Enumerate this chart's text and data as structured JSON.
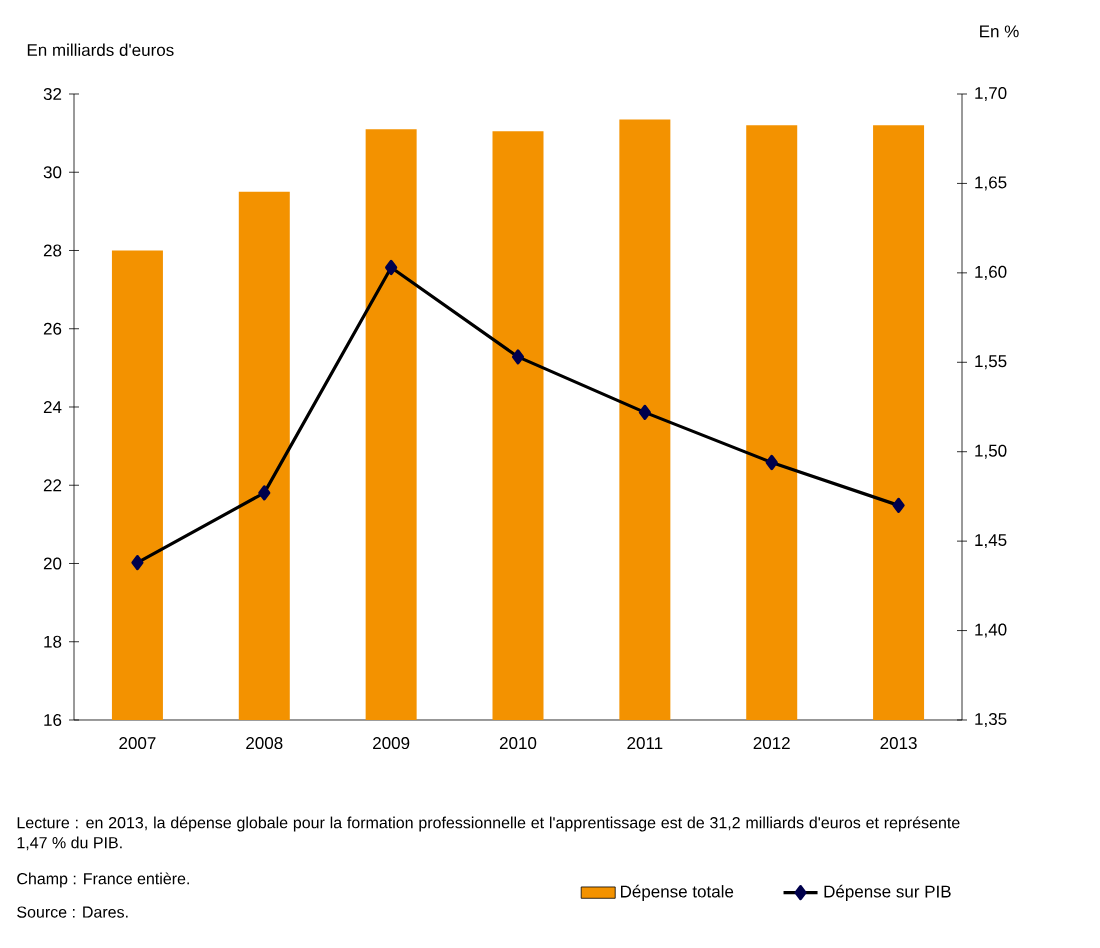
{
  "chart_data": {
    "type": "bar",
    "ylabel": "En milliards d'euros",
    "y2label": "En %",
    "categories": [
      "2007",
      "2008",
      "2009",
      "2010",
      "2011",
      "2012",
      "2013"
    ],
    "series": [
      {
        "name": "Dépense totale",
        "color": "#f39200",
        "values": [
          28.0,
          29.5,
          31.1,
          31.05,
          31.35,
          31.2,
          31.2
        ]
      },
      {
        "name": "Dépense sur PIB",
        "type": "line",
        "axis": "y2",
        "color": "#000000",
        "marker": "diamond",
        "values": [
          1.438,
          1.477,
          1.603,
          1.553,
          1.522,
          1.494,
          1.47
        ]
      }
    ],
    "ylim": [
      16,
      32
    ],
    "yticks": [
      16,
      18,
      20,
      22,
      24,
      26,
      28,
      30,
      32
    ],
    "y2lim": [
      1.35,
      1.7
    ],
    "y2ticks": [
      {
        "value": 1.35,
        "label": "1,35"
      },
      {
        "value": 1.4,
        "label": "1,40"
      },
      {
        "value": 1.45,
        "label": "1,45"
      },
      {
        "value": 1.5,
        "label": "1,50"
      },
      {
        "value": 1.55,
        "label": "1,55"
      },
      {
        "value": 1.6,
        "label": "1,60"
      },
      {
        "value": 1.65,
        "label": "1,65"
      },
      {
        "value": 1.7,
        "label": "1,70"
      }
    ],
    "grid": false,
    "legend": "bottom right",
    "annotations": [
      "Lecture : en 2013, la dépense globale pour la formation professionnelle et l'apprentissage est de 31,2  milliards d'euros et représente 1,47 % du PIB.",
      "Champ : France entière.",
      "Source : Dares."
    ]
  }
}
